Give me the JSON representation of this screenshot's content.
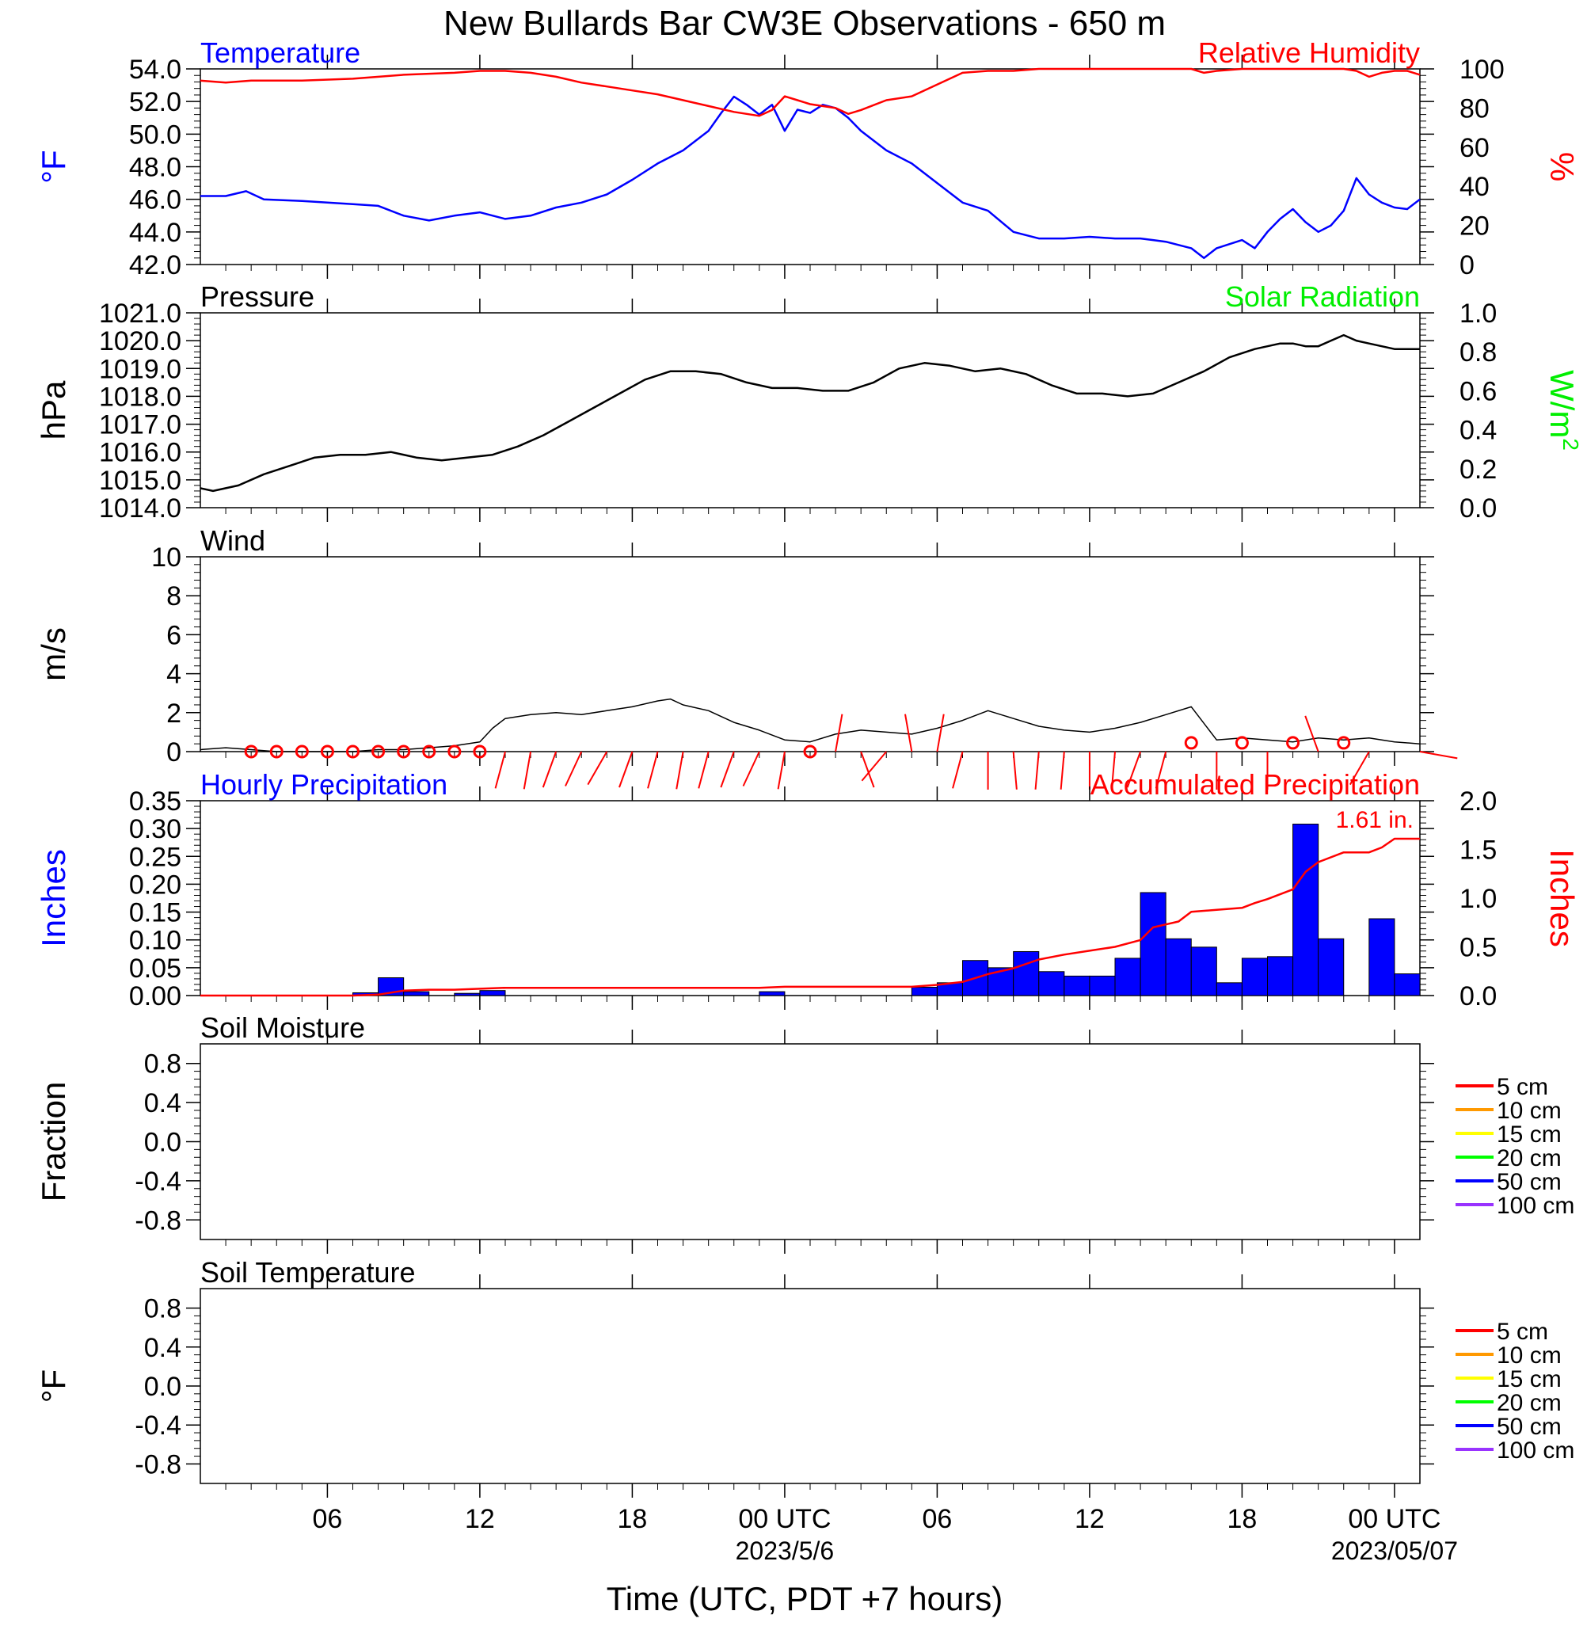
{
  "title": "New Bullards Bar CW3E Observations - 650 m",
  "xlabel": "Time (UTC, PDT +7 hours)",
  "colors": {
    "temperature": "#0000ff",
    "humidity": "#ff0000",
    "pressure": "#000000",
    "solar": "#00ee00",
    "wind": "#000000",
    "wind_marker": "#ff0000",
    "hourly_precip": "#0000ff",
    "accum_precip": "#ff0000"
  },
  "x_axis": {
    "ticks": [
      {
        "hour": 6,
        "label": "06",
        "date": ""
      },
      {
        "hour": 12,
        "label": "12",
        "date": ""
      },
      {
        "hour": 18,
        "label": "18",
        "date": ""
      },
      {
        "hour": 24,
        "label": "00 UTC",
        "date": "2023/5/6"
      },
      {
        "hour": 30,
        "label": "06",
        "date": ""
      },
      {
        "hour": 36,
        "label": "12",
        "date": ""
      },
      {
        "hour": 42,
        "label": "18",
        "date": ""
      },
      {
        "hour": 48,
        "label": "00 UTC",
        "date": "2023/05/07"
      }
    ],
    "range_hours": [
      1,
      49
    ]
  },
  "chart_data": [
    {
      "type": "line",
      "panel": "temperature_humidity",
      "left_label": "Temperature",
      "right_label": "Relative Humidity",
      "ylabel_left": "°F",
      "ylabel_right": "%",
      "ylim_left": [
        42,
        54
      ],
      "yticks_left": [
        "54.0",
        "52.0",
        "50.0",
        "48.0",
        "46.0",
        "44.0",
        "42.0"
      ],
      "ylim_right": [
        0,
        100
      ],
      "yticks_right": [
        "100",
        "80",
        "60",
        "40",
        "20",
        "0"
      ],
      "series": [
        {
          "name": "Temperature",
          "axis": "left",
          "x": [
            1,
            2,
            2.8,
            3.5,
            5,
            6,
            7,
            8,
            9,
            10,
            11,
            12,
            13,
            14,
            15,
            16,
            17,
            18,
            19,
            20,
            21,
            21.5,
            22,
            22.5,
            23,
            23.5,
            24,
            24.5,
            25,
            25.5,
            26,
            26.5,
            27,
            28,
            29,
            30,
            31,
            32,
            33,
            34,
            35,
            36,
            37,
            38,
            38.5,
            39,
            40,
            40.5,
            41,
            42,
            42.5,
            43,
            43.5,
            44,
            44.5,
            45,
            45.5,
            46,
            46.5,
            47,
            47.5,
            48,
            48.5,
            49
          ],
          "y": [
            46.2,
            46.2,
            46.5,
            46.0,
            45.9,
            45.8,
            45.7,
            45.6,
            45.0,
            44.7,
            45.0,
            45.2,
            44.8,
            45.0,
            45.5,
            45.8,
            46.3,
            47.2,
            48.2,
            49.0,
            50.2,
            51.3,
            52.3,
            51.8,
            51.2,
            51.8,
            50.2,
            51.5,
            51.3,
            51.8,
            51.6,
            51.0,
            50.2,
            49.0,
            48.2,
            47.0,
            45.8,
            45.3,
            44.0,
            43.6,
            43.6,
            43.7,
            43.6,
            43.6,
            43.5,
            43.4,
            43.0,
            42.4,
            43.0,
            43.5,
            43.0,
            44.0,
            44.8,
            45.4,
            44.6,
            44.0,
            44.4,
            45.3,
            47.3,
            46.3,
            45.8,
            45.5,
            45.4,
            46.0
          ]
        },
        {
          "name": "Relative Humidity",
          "axis": "right",
          "x": [
            1,
            2,
            3,
            5,
            7,
            9,
            11,
            12,
            13,
            14,
            15,
            16,
            17,
            18,
            19,
            20,
            21,
            22,
            23,
            23.5,
            24,
            24.5,
            25,
            26,
            26.5,
            27,
            28,
            29,
            30,
            31,
            32,
            33,
            34,
            36,
            38,
            40,
            40.5,
            41,
            42,
            44,
            45,
            46,
            46.5,
            47,
            47.5,
            48,
            48.5,
            49
          ],
          "y": [
            94,
            93,
            94,
            94,
            95,
            97,
            98,
            99,
            99,
            98,
            96,
            93,
            91,
            89,
            87,
            84,
            81,
            78,
            76,
            79,
            86,
            84,
            82,
            80,
            77,
            79,
            84,
            86,
            92,
            98,
            99,
            99,
            100,
            100,
            100,
            100,
            98,
            99,
            100,
            100,
            100,
            100,
            99,
            96,
            98,
            99,
            99,
            97
          ]
        }
      ]
    },
    {
      "type": "line",
      "panel": "pressure_solar",
      "left_label": "Pressure",
      "right_label": "Solar Radiation",
      "ylabel_left": "hPa",
      "ylabel_right": "W/m",
      "ylabel_right_sup": "2",
      "ylim_left": [
        1014,
        1021
      ],
      "yticks_left": [
        "1021.0",
        "1020.0",
        "1019.0",
        "1018.0",
        "1017.0",
        "1016.0",
        "1015.0",
        "1014.0"
      ],
      "ylim_right": [
        0,
        1
      ],
      "yticks_right": [
        "1.0",
        "0.8",
        "0.6",
        "0.4",
        "0.2",
        "0.0"
      ],
      "series": [
        {
          "name": "Pressure",
          "axis": "left",
          "x": [
            1,
            1.5,
            2.5,
            3.5,
            4.5,
            5.5,
            6.5,
            7.5,
            8.5,
            9.5,
            10.5,
            11.5,
            12.5,
            13.5,
            14.5,
            15.5,
            16.5,
            17.5,
            18.5,
            19.5,
            20.5,
            21.5,
            22.5,
            23.5,
            24.5,
            25.5,
            26.5,
            27.5,
            28.5,
            29.5,
            30.5,
            31.5,
            32.5,
            33.5,
            34.5,
            35.5,
            36.5,
            37.5,
            38.5,
            39.5,
            40.5,
            41.5,
            42.5,
            43.5,
            44,
            44.5,
            45,
            45.5,
            46,
            46.5,
            47,
            47.5,
            48,
            48.5,
            49
          ],
          "y": [
            1014.7,
            1014.6,
            1014.8,
            1015.2,
            1015.5,
            1015.8,
            1015.9,
            1015.9,
            1016.0,
            1015.8,
            1015.7,
            1015.8,
            1015.9,
            1016.2,
            1016.6,
            1017.1,
            1017.6,
            1018.1,
            1018.6,
            1018.9,
            1018.9,
            1018.8,
            1018.5,
            1018.3,
            1018.3,
            1018.2,
            1018.2,
            1018.5,
            1019.0,
            1019.2,
            1019.1,
            1018.9,
            1019.0,
            1018.8,
            1018.4,
            1018.1,
            1018.1,
            1018.0,
            1018.1,
            1018.5,
            1018.9,
            1019.4,
            1019.7,
            1019.9,
            1019.9,
            1019.8,
            1019.8,
            1020.0,
            1020.2,
            1020.0,
            1019.9,
            1019.8,
            1019.7,
            1019.7,
            1019.7
          ]
        }
      ]
    },
    {
      "type": "line",
      "panel": "wind",
      "left_label": "Wind",
      "ylabel_left": "m/s",
      "ylim_left": [
        0,
        10
      ],
      "yticks_left": [
        "10",
        "8",
        "6",
        "4",
        "2",
        "0"
      ],
      "series": [
        {
          "name": "Wind",
          "axis": "left",
          "x": [
            1,
            2,
            3,
            4,
            5,
            6,
            7,
            8,
            9,
            10,
            11,
            12,
            12.5,
            13,
            14,
            15,
            16,
            17,
            18,
            19,
            19.5,
            20,
            21,
            22,
            23,
            24,
            25,
            26,
            27,
            28,
            29,
            30,
            31,
            32,
            33,
            34,
            35,
            36,
            37,
            38,
            39,
            40,
            41,
            42,
            43,
            44,
            45,
            46,
            47,
            48,
            49
          ],
          "y": [
            0.1,
            0.2,
            0.1,
            0.0,
            0.0,
            0.0,
            0.0,
            0.1,
            0.1,
            0.2,
            0.3,
            0.5,
            1.2,
            1.7,
            1.9,
            2.0,
            1.9,
            2.1,
            2.3,
            2.6,
            2.7,
            2.4,
            2.1,
            1.5,
            1.1,
            0.6,
            0.5,
            0.9,
            1.1,
            1.0,
            0.9,
            1.2,
            1.6,
            2.1,
            1.7,
            1.3,
            1.1,
            1.0,
            1.2,
            1.5,
            1.9,
            2.3,
            0.6,
            0.7,
            0.6,
            0.5,
            0.7,
            0.6,
            0.7,
            0.5,
            0.4
          ]
        }
      ],
      "calm_markers_hours": [
        3,
        4,
        5,
        6,
        7,
        8,
        9,
        10,
        11,
        12,
        25,
        40,
        42,
        44,
        46
      ],
      "wind_barbs": [
        {
          "hour": 13,
          "dir": 195
        },
        {
          "hour": 14,
          "dir": 190
        },
        {
          "hour": 15,
          "dir": 200
        },
        {
          "hour": 16,
          "dir": 205
        },
        {
          "hour": 17,
          "dir": 210
        },
        {
          "hour": 18,
          "dir": 200
        },
        {
          "hour": 19,
          "dir": 195
        },
        {
          "hour": 20,
          "dir": 190
        },
        {
          "hour": 21,
          "dir": 195
        },
        {
          "hour": 22,
          "dir": 200
        },
        {
          "hour": 23,
          "dir": 205
        },
        {
          "hour": 24,
          "dir": 190
        },
        {
          "hour": 26,
          "dir": 10
        },
        {
          "hour": 27,
          "dir": 160
        },
        {
          "hour": 28,
          "dir": 220
        },
        {
          "hour": 29,
          "dir": 350
        },
        {
          "hour": 30,
          "dir": 10
        },
        {
          "hour": 31,
          "dir": 195
        },
        {
          "hour": 32,
          "dir": 180
        },
        {
          "hour": 33,
          "dir": 175
        },
        {
          "hour": 34,
          "dir": 185
        },
        {
          "hour": 35,
          "dir": 185
        },
        {
          "hour": 36,
          "dir": 180
        },
        {
          "hour": 37,
          "dir": 185
        },
        {
          "hour": 38,
          "dir": 200
        },
        {
          "hour": 39,
          "dir": 195
        },
        {
          "hour": 41,
          "dir": 180
        },
        {
          "hour": 43,
          "dir": 180
        },
        {
          "hour": 45,
          "dir": 340
        },
        {
          "hour": 47,
          "dir": 210
        },
        {
          "hour": 49,
          "dir": 100
        }
      ]
    },
    {
      "type": "bar",
      "panel": "precipitation",
      "left_label": "Hourly Precipitation",
      "right_label": "Accumulated Precipitation",
      "ylabel_left": "Inches",
      "ylabel_right": "Inches",
      "annotation": "1.61 in.",
      "ylim_left": [
        0,
        0.35
      ],
      "yticks_left": [
        "0.35",
        "0.30",
        "0.25",
        "0.20",
        "0.15",
        "0.10",
        "0.05",
        "0.00"
      ],
      "ylim_right": [
        0,
        2.0
      ],
      "yticks_right": [
        "2.0",
        "1.5",
        "1.0",
        "0.5",
        "0.0"
      ],
      "hourly": {
        "start_hours": [
          7,
          8,
          9,
          11,
          12,
          23,
          29,
          30,
          31,
          32,
          33,
          34,
          35,
          36,
          37,
          38,
          39,
          40,
          41,
          42,
          43,
          44,
          45,
          47,
          48
        ],
        "values": [
          0.005,
          0.032,
          0.007,
          0.004,
          0.009,
          0.007,
          0.015,
          0.023,
          0.063,
          0.05,
          0.079,
          0.043,
          0.035,
          0.035,
          0.067,
          0.185,
          0.102,
          0.087,
          0.023,
          0.067,
          0.07,
          0.308,
          0.102,
          0.138,
          0.039
        ]
      },
      "accumulated": {
        "x": [
          1,
          7,
          8,
          9,
          10,
          11,
          12,
          13,
          23,
          24,
          29,
          30,
          31,
          32,
          33,
          34,
          35,
          36,
          37,
          38,
          38.5,
          39,
          39.5,
          40,
          41,
          42,
          42.5,
          43,
          44,
          44.5,
          45,
          46,
          47,
          47.5,
          48,
          49
        ],
        "y": [
          0,
          0,
          0.01,
          0.05,
          0.06,
          0.06,
          0.07,
          0.08,
          0.08,
          0.09,
          0.09,
          0.11,
          0.14,
          0.22,
          0.28,
          0.37,
          0.42,
          0.46,
          0.5,
          0.57,
          0.7,
          0.73,
          0.76,
          0.86,
          0.88,
          0.9,
          0.95,
          0.99,
          1.09,
          1.27,
          1.37,
          1.47,
          1.47,
          1.52,
          1.61,
          1.61
        ]
      }
    },
    {
      "type": "line",
      "panel": "soil_moisture",
      "left_label": "Soil Moisture",
      "ylabel_left": "Fraction",
      "ylim_left": [
        -1,
        1
      ],
      "yticks_left": [
        "0.8",
        "0.4",
        "0.0",
        "-0.4",
        "-0.8"
      ],
      "legend": [
        {
          "label": "5 cm",
          "color": "#ff0000"
        },
        {
          "label": "10 cm",
          "color": "#ff9900"
        },
        {
          "label": "15 cm",
          "color": "#ffff00"
        },
        {
          "label": "20 cm",
          "color": "#00ff00"
        },
        {
          "label": "50 cm",
          "color": "#0000ff"
        },
        {
          "label": "100 cm",
          "color": "#9933ff"
        }
      ],
      "series": []
    },
    {
      "type": "line",
      "panel": "soil_temperature",
      "left_label": "Soil Temperature",
      "ylabel_left": "°F",
      "ylim_left": [
        -1,
        1
      ],
      "yticks_left": [
        "0.8",
        "0.4",
        "0.0",
        "-0.4",
        "-0.8"
      ],
      "legend": [
        {
          "label": "5 cm",
          "color": "#ff0000"
        },
        {
          "label": "10 cm",
          "color": "#ff9900"
        },
        {
          "label": "15 cm",
          "color": "#ffff00"
        },
        {
          "label": "20 cm",
          "color": "#00ff00"
        },
        {
          "label": "50 cm",
          "color": "#0000ff"
        },
        {
          "label": "100 cm",
          "color": "#9933ff"
        }
      ],
      "series": []
    }
  ]
}
